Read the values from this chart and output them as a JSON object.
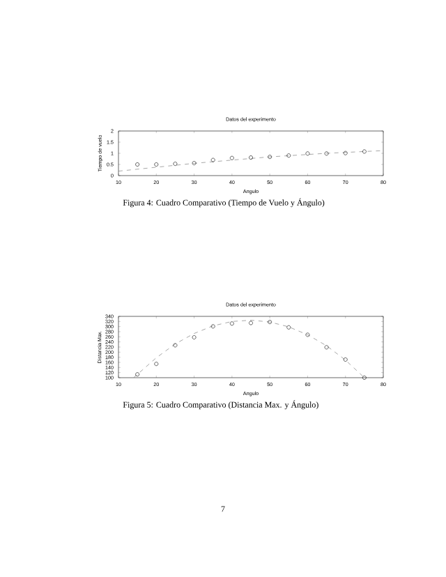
{
  "chart_data": [
    {
      "type": "scatter",
      "title": "Datos del experimento",
      "xlabel": "Angulo",
      "ylabel": "Tiempo de vuelo",
      "annotations": [
        "Figura 4: Cuadro Comparativo (Tiempo de Vuelo y Ángulo)"
      ],
      "xlim": [
        10,
        80
      ],
      "xticks": [
        10,
        20,
        30,
        40,
        50,
        60,
        70,
        80
      ],
      "ylim": [
        0,
        2
      ],
      "yticks": [
        0,
        0.5,
        1,
        1.5,
        2
      ],
      "grid": false,
      "series": [
        {
          "marker": "circle",
          "color": "#000000",
          "x": [
            15,
            20,
            25,
            30,
            35,
            40,
            45,
            50,
            55,
            60,
            65,
            70,
            75
          ],
          "values": [
            0.5,
            0.5,
            0.53,
            0.56,
            0.7,
            0.79,
            0.81,
            0.84,
            0.9,
            0.99,
            0.99,
            1.01,
            1.08
          ]
        },
        {
          "type": "line",
          "marker": "none",
          "line_style": "dashed",
          "color": "#808080",
          "x": [
            10,
            30,
            50,
            65,
            80
          ],
          "values": [
            0.2,
            0.55,
            0.84,
            1.0,
            1.12
          ]
        }
      ]
    },
    {
      "type": "scatter",
      "title": "Datos del experimento",
      "xlabel": "Angulo",
      "ylabel": "Distancia Max.",
      "annotations": [
        "Figura 5: Cuadro Comparativo (Distancia Max. y Ángulo)",
        "7"
      ],
      "xlim": [
        10,
        80
      ],
      "xticks": [
        10,
        20,
        30,
        40,
        50,
        60,
        70,
        80
      ],
      "ylim": [
        100,
        340
      ],
      "yticks": [
        100,
        120,
        140,
        160,
        180,
        200,
        220,
        240,
        260,
        280,
        300,
        320,
        340
      ],
      "grid": false,
      "series": [
        {
          "marker": "circle",
          "color": "#000000",
          "x": [
            15,
            20,
            25,
            30,
            35,
            40,
            45,
            50,
            55,
            60,
            65,
            70,
            75
          ],
          "values": [
            113,
            154,
            227,
            258,
            301,
            312,
            314,
            318,
            297,
            268,
            219,
            171,
            100
          ]
        },
        {
          "type": "line",
          "marker": "none",
          "line_style": "dashed",
          "color": "#808080",
          "x": [
            14,
            20,
            25,
            30,
            35,
            40,
            45,
            50,
            55,
            60,
            65,
            70,
            75
          ],
          "values": [
            100,
            178,
            232,
            273,
            303,
            320,
            325,
            318,
            299,
            268,
            225,
            169,
            100
          ]
        }
      ]
    }
  ]
}
